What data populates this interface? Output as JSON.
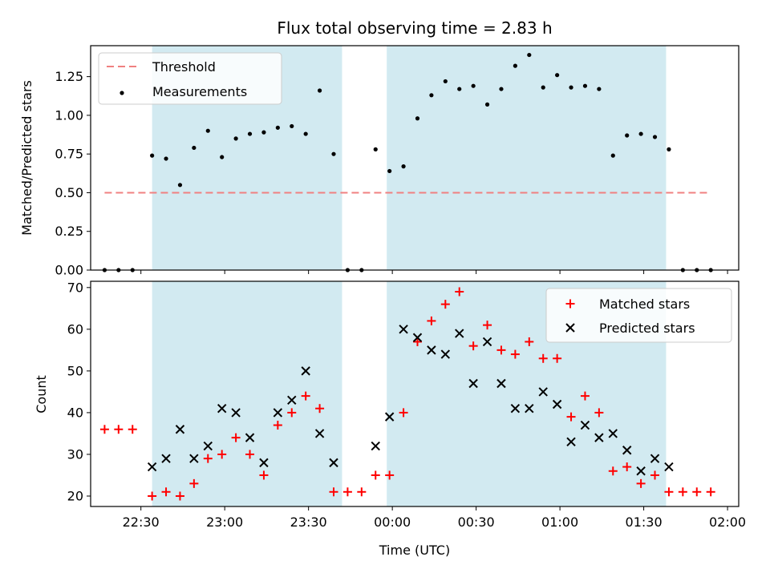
{
  "figure": {
    "title": "Flux total observing time = 2.83 h",
    "xlabel": "Time (UTC)"
  },
  "colors": {
    "shade": "#add8e6",
    "threshold": "#f08080",
    "matched": "#ff0000",
    "predicted": "#000000",
    "measurement": "#000000"
  },
  "chart_data": [
    {
      "type": "scatter",
      "panel": "top",
      "ylabel": "Matched/Predicted stars",
      "xlim": [
        "22:12",
        "02:04"
      ],
      "ylim": [
        0,
        1.45
      ],
      "yticks": [
        0.0,
        0.25,
        0.5,
        0.75,
        1.0,
        1.25
      ],
      "ytick_labels": [
        "0.00",
        "0.25",
        "0.50",
        "0.75",
        "1.00",
        "1.25"
      ],
      "legend": {
        "position": "top-left",
        "entries": [
          "Threshold",
          "Measurements"
        ]
      },
      "shaded_intervals": [
        [
          "22:34",
          "23:42"
        ],
        [
          "23:58",
          "01:38"
        ]
      ],
      "threshold": {
        "name": "Threshold",
        "y": 0.5,
        "x_start": "22:17",
        "x_end": "01:54"
      },
      "series": [
        {
          "name": "Measurements",
          "points": [
            [
              "22:17",
              0
            ],
            [
              "22:22",
              0
            ],
            [
              "22:27",
              0
            ],
            [
              "22:34",
              0.74
            ],
            [
              "22:39",
              0.72
            ],
            [
              "22:44",
              0.55
            ],
            [
              "22:49",
              0.79
            ],
            [
              "22:54",
              0.9
            ],
            [
              "22:59",
              0.73
            ],
            [
              "23:04",
              0.85
            ],
            [
              "23:09",
              0.88
            ],
            [
              "23:14",
              0.89
            ],
            [
              "23:19",
              0.92
            ],
            [
              "23:24",
              0.93
            ],
            [
              "23:29",
              0.88
            ],
            [
              "23:34",
              1.16
            ],
            [
              "23:39",
              0.75
            ],
            [
              "23:44",
              0
            ],
            [
              "23:49",
              0
            ],
            [
              "23:54",
              0.78
            ],
            [
              "23:59",
              0.64
            ],
            [
              "00:04",
              0.67
            ],
            [
              "00:09",
              0.98
            ],
            [
              "00:14",
              1.13
            ],
            [
              "00:19",
              1.22
            ],
            [
              "00:24",
              1.17
            ],
            [
              "00:29",
              1.19
            ],
            [
              "00:34",
              1.07
            ],
            [
              "00:39",
              1.17
            ],
            [
              "00:44",
              1.32
            ],
            [
              "00:49",
              1.39
            ],
            [
              "00:54",
              1.18
            ],
            [
              "00:59",
              1.26
            ],
            [
              "01:04",
              1.18
            ],
            [
              "01:09",
              1.19
            ],
            [
              "01:14",
              1.17
            ],
            [
              "01:19",
              0.74
            ],
            [
              "01:24",
              0.87
            ],
            [
              "01:29",
              0.88
            ],
            [
              "01:34",
              0.86
            ],
            [
              "01:39",
              0.78
            ],
            [
              "01:44",
              0
            ],
            [
              "01:49",
              0
            ],
            [
              "01:54",
              0
            ]
          ]
        }
      ]
    },
    {
      "type": "scatter",
      "panel": "bottom",
      "ylabel": "Count",
      "xlim": [
        "22:12",
        "02:04"
      ],
      "ylim": [
        17.5,
        71.5
      ],
      "yticks": [
        20,
        30,
        40,
        50,
        60,
        70
      ],
      "ytick_labels": [
        "20",
        "30",
        "40",
        "50",
        "60",
        "70"
      ],
      "xticks": [
        "22:30",
        "23:00",
        "23:30",
        "00:00",
        "00:30",
        "01:00",
        "01:30",
        "02:00"
      ],
      "xtick_labels": [
        "22:30",
        "23:00",
        "23:30",
        "00:00",
        "00:30",
        "01:00",
        "01:30",
        "02:00"
      ],
      "legend": {
        "position": "top-right",
        "entries": [
          "Matched stars",
          "Predicted stars"
        ]
      },
      "shaded_intervals": [
        [
          "22:34",
          "23:42"
        ],
        [
          "23:58",
          "01:38"
        ]
      ],
      "series": [
        {
          "name": "Matched stars",
          "marker": "plus",
          "points": [
            [
              "22:17",
              36
            ],
            [
              "22:22",
              36
            ],
            [
              "22:27",
              36
            ],
            [
              "22:34",
              20
            ],
            [
              "22:39",
              21
            ],
            [
              "22:44",
              20
            ],
            [
              "22:49",
              23
            ],
            [
              "22:54",
              29
            ],
            [
              "22:59",
              30
            ],
            [
              "23:04",
              34
            ],
            [
              "23:09",
              30
            ],
            [
              "23:14",
              25
            ],
            [
              "23:19",
              37
            ],
            [
              "23:24",
              40
            ],
            [
              "23:29",
              44
            ],
            [
              "23:34",
              41
            ],
            [
              "23:39",
              21
            ],
            [
              "23:44",
              21
            ],
            [
              "23:49",
              21
            ],
            [
              "23:54",
              25
            ],
            [
              "23:59",
              25
            ],
            [
              "00:04",
              40
            ],
            [
              "00:09",
              57
            ],
            [
              "00:14",
              62
            ],
            [
              "00:19",
              66
            ],
            [
              "00:24",
              69
            ],
            [
              "00:29",
              56
            ],
            [
              "00:34",
              61
            ],
            [
              "00:39",
              55
            ],
            [
              "00:44",
              54
            ],
            [
              "00:49",
              57
            ],
            [
              "00:54",
              53
            ],
            [
              "00:59",
              53
            ],
            [
              "01:04",
              39
            ],
            [
              "01:09",
              44
            ],
            [
              "01:14",
              40
            ],
            [
              "01:19",
              26
            ],
            [
              "01:24",
              27
            ],
            [
              "01:29",
              23
            ],
            [
              "01:34",
              25
            ],
            [
              "01:39",
              21
            ],
            [
              "01:44",
              21
            ],
            [
              "01:49",
              21
            ],
            [
              "01:54",
              21
            ]
          ]
        },
        {
          "name": "Predicted stars",
          "marker": "x",
          "points": [
            [
              "22:34",
              27
            ],
            [
              "22:39",
              29
            ],
            [
              "22:44",
              36
            ],
            [
              "22:49",
              29
            ],
            [
              "22:54",
              32
            ],
            [
              "22:59",
              41
            ],
            [
              "23:04",
              40
            ],
            [
              "23:09",
              34
            ],
            [
              "23:14",
              28
            ],
            [
              "23:19",
              40
            ],
            [
              "23:24",
              43
            ],
            [
              "23:29",
              50
            ],
            [
              "23:34",
              35
            ],
            [
              "23:39",
              28
            ],
            [
              "23:54",
              32
            ],
            [
              "23:59",
              39
            ],
            [
              "00:04",
              60
            ],
            [
              "00:09",
              58
            ],
            [
              "00:14",
              55
            ],
            [
              "00:19",
              54
            ],
            [
              "00:24",
              59
            ],
            [
              "00:29",
              47
            ],
            [
              "00:34",
              57
            ],
            [
              "00:39",
              47
            ],
            [
              "00:44",
              41
            ],
            [
              "00:49",
              41
            ],
            [
              "00:54",
              45
            ],
            [
              "00:59",
              42
            ],
            [
              "01:04",
              33
            ],
            [
              "01:09",
              37
            ],
            [
              "01:14",
              34
            ],
            [
              "01:19",
              35
            ],
            [
              "01:24",
              31
            ],
            [
              "01:29",
              26
            ],
            [
              "01:34",
              29
            ],
            [
              "01:39",
              27
            ]
          ]
        }
      ]
    }
  ]
}
